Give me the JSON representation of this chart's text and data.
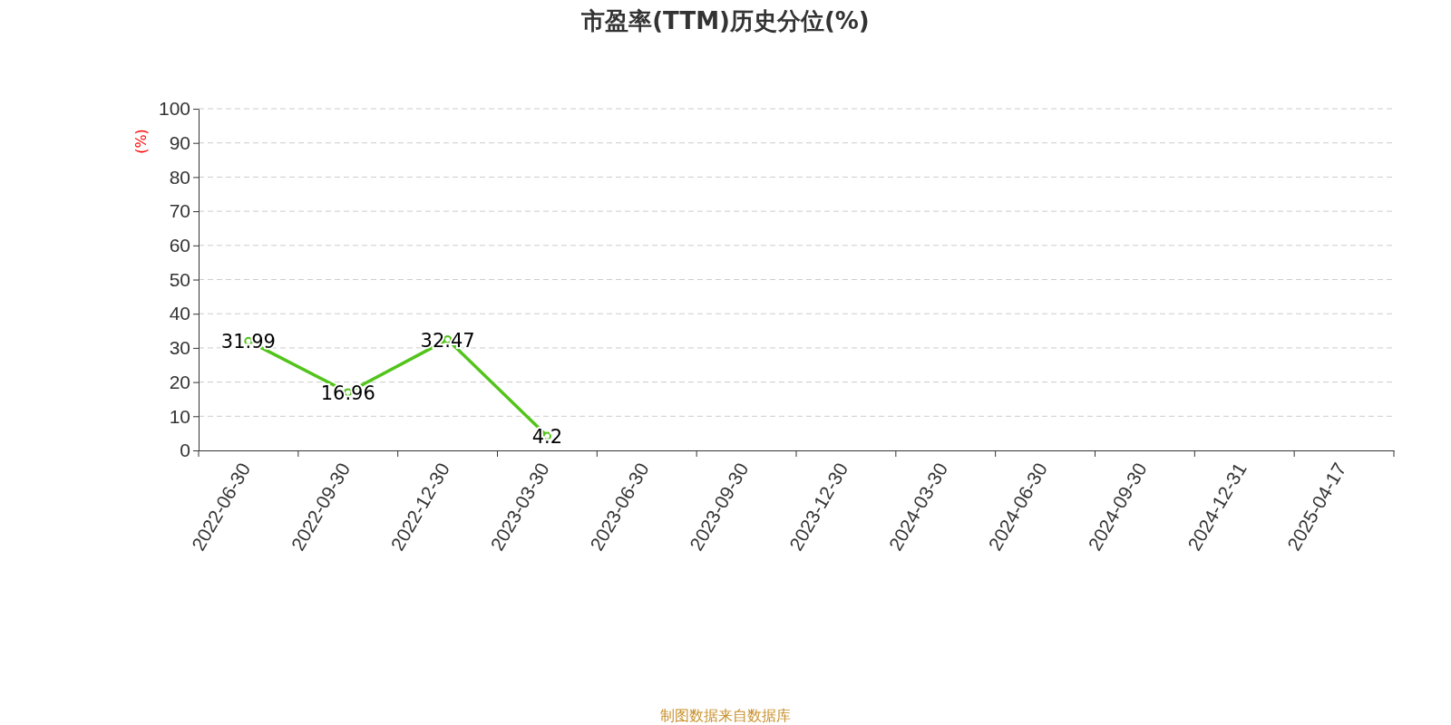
{
  "chart_data": {
    "type": "line",
    "title": "市盈率(TTM)历史分位(%)",
    "ylabel": "(%)",
    "categories": [
      "2022-06-30",
      "2022-09-30",
      "2022-12-30",
      "2023-03-30",
      "2023-06-30",
      "2023-09-30",
      "2023-12-30",
      "2024-03-30",
      "2024-06-30",
      "2024-09-30",
      "2024-12-31",
      "2025-04-17"
    ],
    "series": [
      {
        "color": "#52c41a",
        "values": [
          31.99,
          16.96,
          32.47,
          4.2,
          null,
          null,
          null,
          null,
          null,
          null,
          null,
          null
        ]
      }
    ],
    "ylim": [
      0,
      100
    ],
    "yticks": [
      0,
      10,
      20,
      30,
      40,
      50,
      60,
      70,
      80,
      90,
      100
    ],
    "grid": "y",
    "data_labels": true,
    "marker": "circle",
    "line_style": "solid",
    "annotations": [
      "制图数据来自数据库"
    ]
  }
}
